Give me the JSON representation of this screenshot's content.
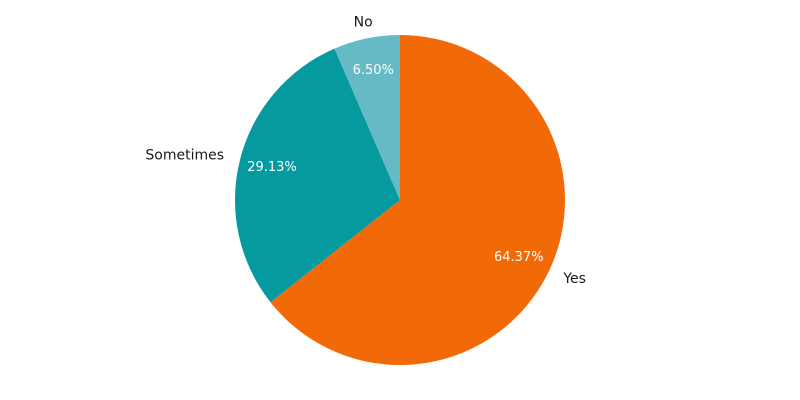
{
  "chart_data": {
    "type": "pie",
    "title": "",
    "slices": [
      {
        "label": "Yes",
        "value": 64.37,
        "value_label": "64.37%",
        "color": "#f26a08"
      },
      {
        "label": "Sometimes",
        "value": 29.13,
        "value_label": "29.13%",
        "color": "#059aa0"
      },
      {
        "label": "No",
        "value": 6.5,
        "value_label": "6.50%",
        "color": "#66bac5"
      }
    ],
    "start_angle": "12 o'clock",
    "direction": "clockwise",
    "legend": "none"
  }
}
